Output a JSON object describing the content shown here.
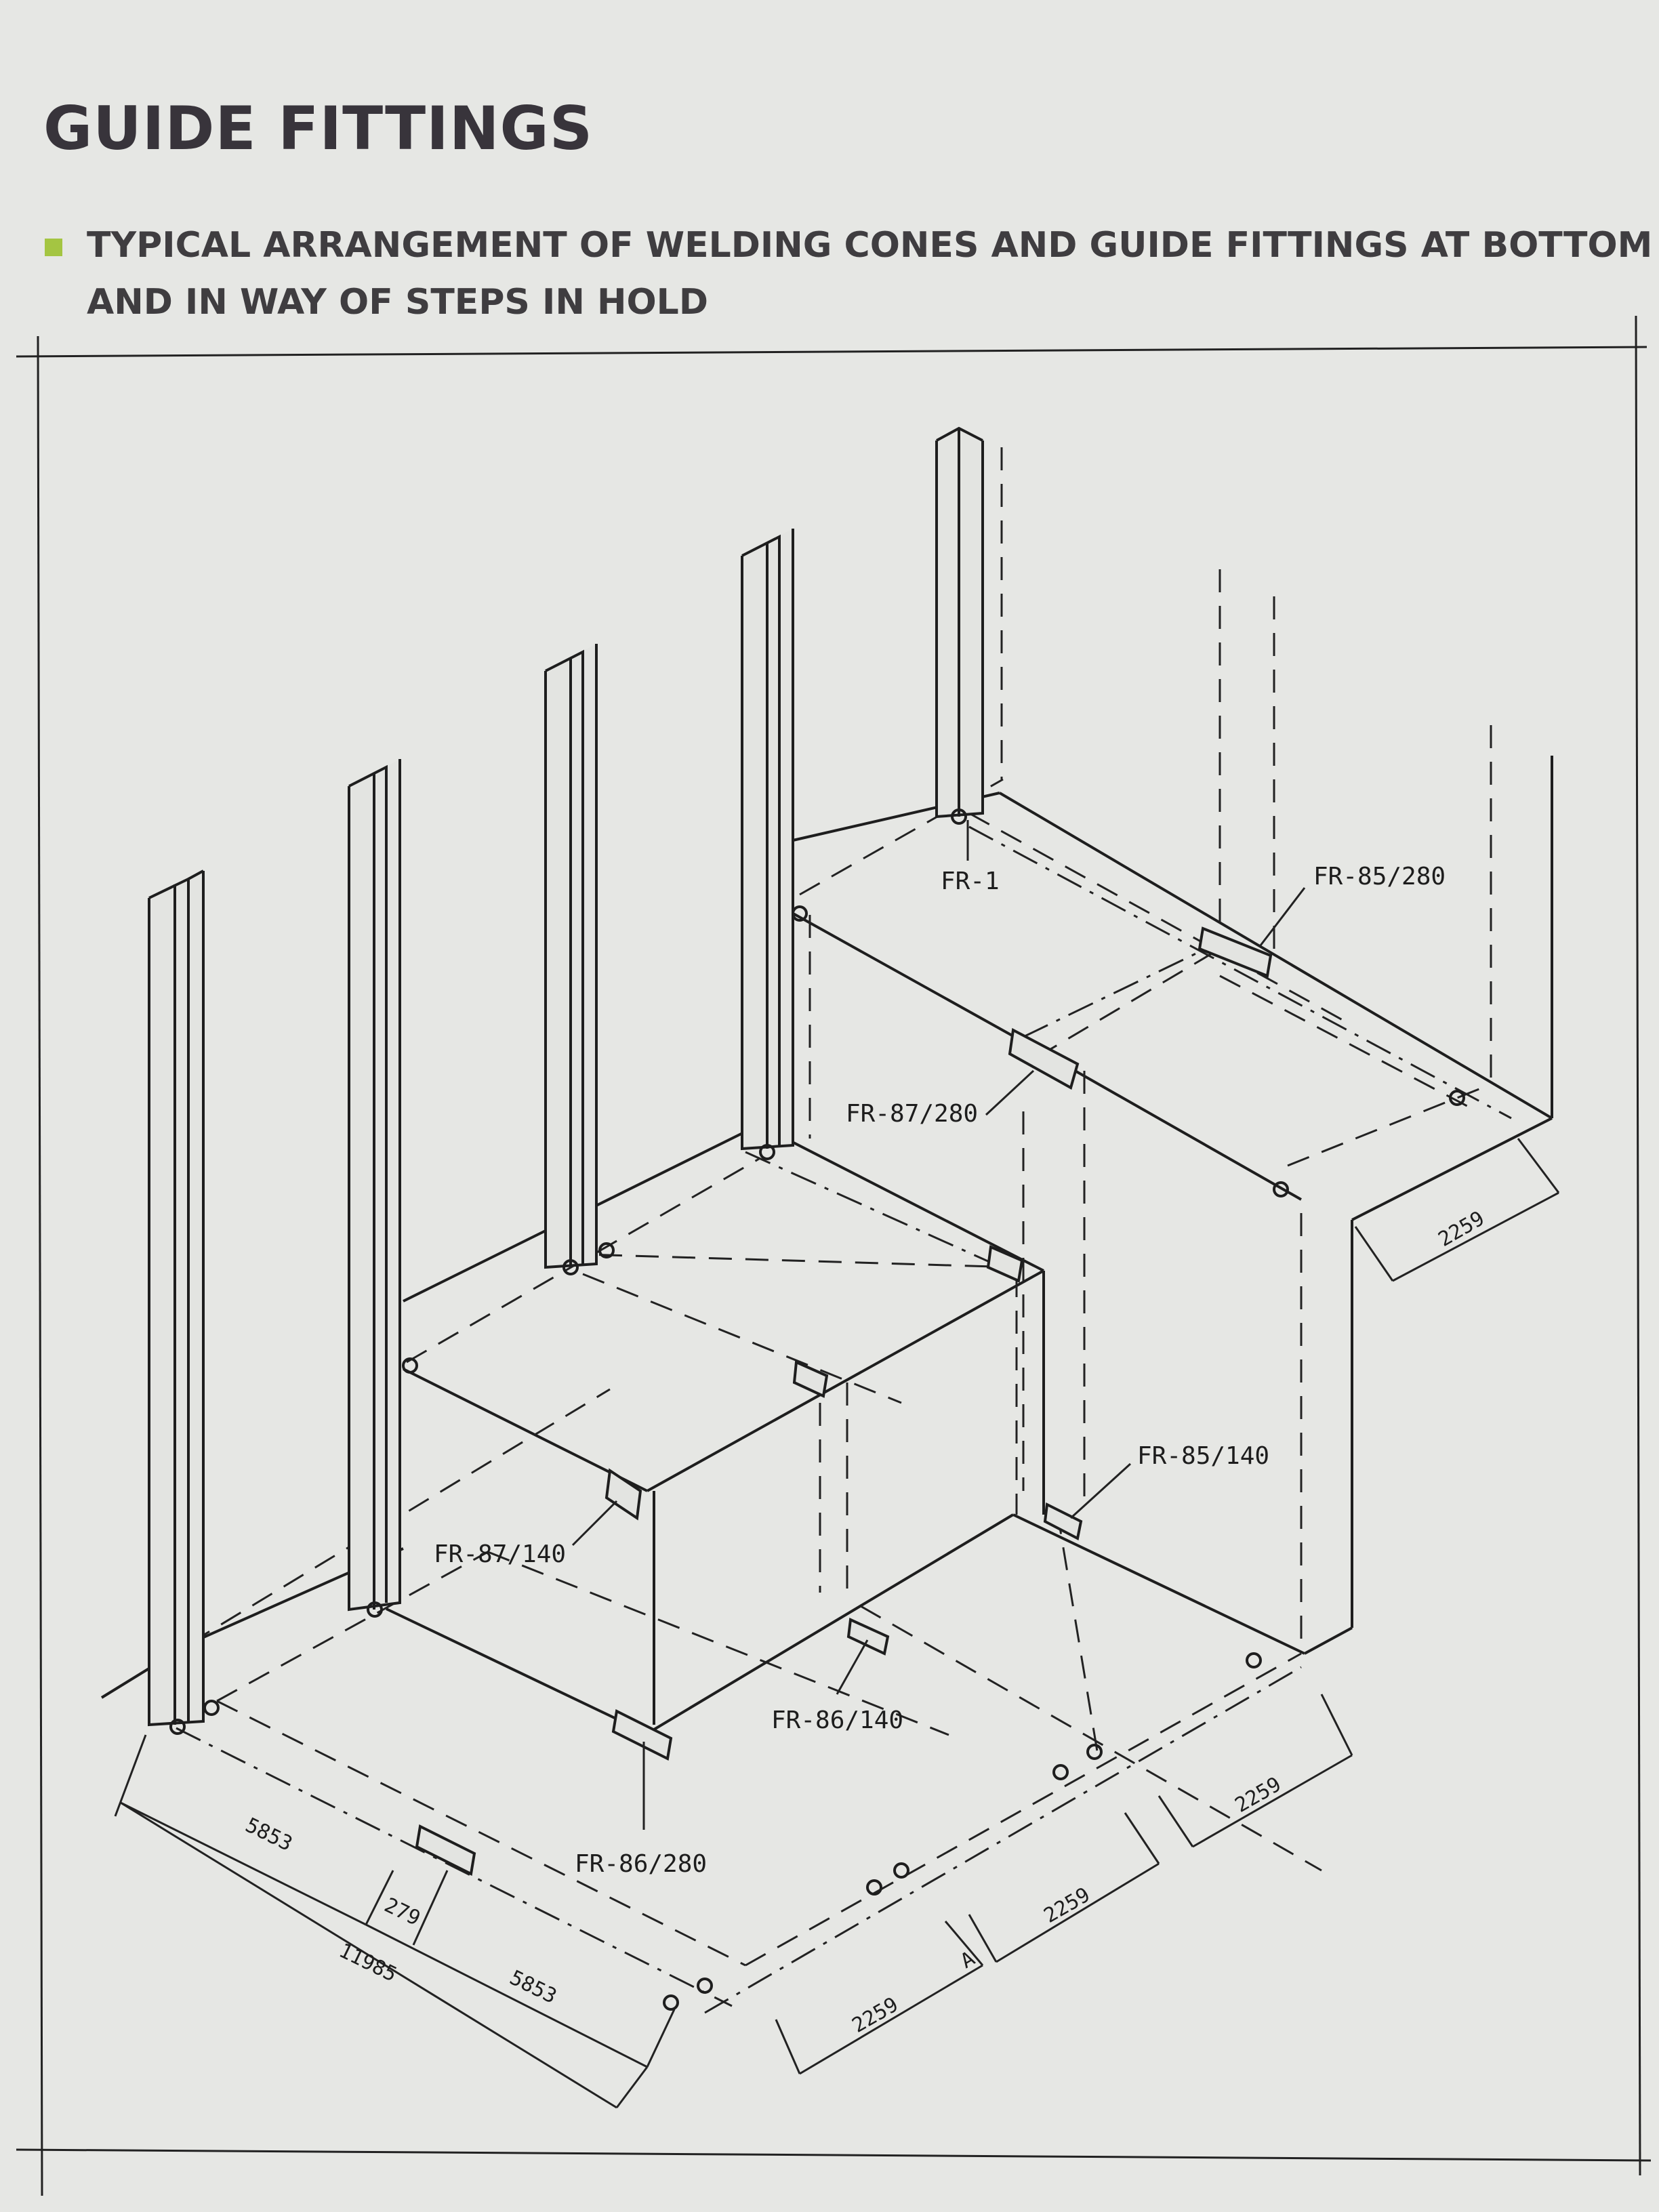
{
  "header": {
    "title": "GUIDE FITTINGS",
    "subtitle_line1": "TYPICAL ARRANGEMENT OF WELDING CONES AND GUIDE FITTINGS AT BOTTOM",
    "subtitle_line2": "AND IN WAY OF STEPS IN HOLD",
    "bullet_color": "#a4c542"
  },
  "drawing": {
    "fittings": {
      "fr1": "FR-1",
      "fr85_280": "FR-85/280",
      "fr87_280": "FR-87/280",
      "fr85_140": "FR-85/140",
      "fr87_140": "FR-87/140",
      "fr86_140": "FR-86/140",
      "fr86_280": "FR-86/280"
    },
    "dimensions": {
      "d5853_a": "5853",
      "d279": "279",
      "d11985": "11985",
      "d5853_b": "5853",
      "d2259_front": "2259",
      "dA": "A",
      "d2259_mid": "2259",
      "d2259_right": "2259",
      "d2259_top": "2259"
    }
  }
}
